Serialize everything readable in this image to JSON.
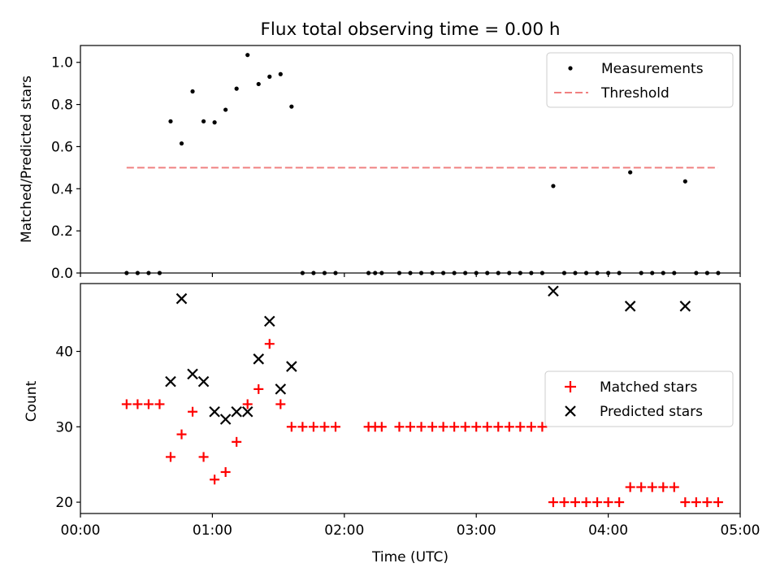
{
  "chart_data": [
    {
      "type": "scatter",
      "title": "Flux total observing time = 0.00 h",
      "xlabel": "",
      "ylabel": "Matched/Predicted stars",
      "xlim": [
        "00:00",
        "05:00"
      ],
      "ylim": [
        0,
        1.08
      ],
      "yticks": [
        0.0,
        0.2,
        0.4,
        0.6,
        0.8,
        1.0
      ],
      "ytick_labels": [
        "0.0",
        "0.2",
        "0.4",
        "0.6",
        "0.8",
        "1.0"
      ],
      "legend_position": "upper-right",
      "series": [
        {
          "name": "Measurements",
          "color": "#000000",
          "marker": "dot",
          "points": [
            [
              "00:21",
              0.0
            ],
            [
              "00:26",
              0.0
            ],
            [
              "00:31",
              0.0
            ],
            [
              "00:36",
              0.0
            ],
            [
              "00:41",
              0.72
            ],
            [
              "00:46",
              0.615
            ],
            [
              "00:51",
              0.862
            ],
            [
              "00:56",
              0.72
            ],
            [
              "01:01",
              0.715
            ],
            [
              "01:06",
              0.775
            ],
            [
              "01:11",
              0.875
            ],
            [
              "01:16",
              1.035
            ],
            [
              "01:21",
              0.897
            ],
            [
              "01:26",
              0.932
            ],
            [
              "01:31",
              0.944
            ],
            [
              "01:36",
              0.79
            ],
            [
              "01:41",
              0.0
            ],
            [
              "01:46",
              0.0
            ],
            [
              "01:51",
              0.0
            ],
            [
              "01:56",
              0.0
            ],
            [
              "02:11",
              0.0
            ],
            [
              "02:14",
              0.0
            ],
            [
              "02:17",
              0.0
            ],
            [
              "02:25",
              0.0
            ],
            [
              "02:30",
              0.0
            ],
            [
              "02:35",
              0.0
            ],
            [
              "02:40",
              0.0
            ],
            [
              "02:45",
              0.0
            ],
            [
              "02:50",
              0.0
            ],
            [
              "02:55",
              0.0
            ],
            [
              "03:00",
              0.0
            ],
            [
              "03:05",
              0.0
            ],
            [
              "03:10",
              0.0
            ],
            [
              "03:15",
              0.0
            ],
            [
              "03:20",
              0.0
            ],
            [
              "03:25",
              0.0
            ],
            [
              "03:30",
              0.0
            ],
            [
              "03:35",
              0.413
            ],
            [
              "03:40",
              0.0
            ],
            [
              "03:45",
              0.0
            ],
            [
              "03:50",
              0.0
            ],
            [
              "03:55",
              0.0
            ],
            [
              "04:00",
              0.0
            ],
            [
              "04:05",
              0.0
            ],
            [
              "04:10",
              0.478
            ],
            [
              "04:15",
              0.0
            ],
            [
              "04:20",
              0.0
            ],
            [
              "04:25",
              0.0
            ],
            [
              "04:30",
              0.0
            ],
            [
              "04:35",
              0.435
            ],
            [
              "04:40",
              0.0
            ],
            [
              "04:45",
              0.0
            ],
            [
              "04:50",
              0.0
            ]
          ]
        },
        {
          "name": "Threshold",
          "color": "#f08080",
          "marker": "dashed-line",
          "points": [
            [
              "00:21",
              0.5
            ],
            [
              "04:50",
              0.5
            ]
          ]
        }
      ]
    },
    {
      "type": "scatter",
      "title": "",
      "xlabel": "Time (UTC)",
      "ylabel": "Count",
      "xlim": [
        "00:00",
        "05:00"
      ],
      "ylim": [
        18.5,
        49
      ],
      "xticks": [
        "00:00",
        "01:00",
        "02:00",
        "03:00",
        "04:00",
        "05:00"
      ],
      "yticks": [
        20,
        30,
        40
      ],
      "ytick_labels": [
        "20",
        "30",
        "40"
      ],
      "legend_position": "center-right",
      "series": [
        {
          "name": "Matched stars",
          "color": "#ff0000",
          "marker": "plus",
          "points": [
            [
              "00:21",
              33
            ],
            [
              "00:26",
              33
            ],
            [
              "00:31",
              33
            ],
            [
              "00:36",
              33
            ],
            [
              "00:41",
              26
            ],
            [
              "00:46",
              29
            ],
            [
              "00:51",
              32
            ],
            [
              "00:56",
              26
            ],
            [
              "01:01",
              23
            ],
            [
              "01:06",
              24
            ],
            [
              "01:11",
              28
            ],
            [
              "01:16",
              33
            ],
            [
              "01:21",
              35
            ],
            [
              "01:26",
              41
            ],
            [
              "01:31",
              33
            ],
            [
              "01:36",
              30
            ],
            [
              "01:41",
              30
            ],
            [
              "01:46",
              30
            ],
            [
              "01:51",
              30
            ],
            [
              "01:56",
              30
            ],
            [
              "02:11",
              30
            ],
            [
              "02:14",
              30
            ],
            [
              "02:17",
              30
            ],
            [
              "02:25",
              30
            ],
            [
              "02:30",
              30
            ],
            [
              "02:35",
              30
            ],
            [
              "02:40",
              30
            ],
            [
              "02:45",
              30
            ],
            [
              "02:50",
              30
            ],
            [
              "02:55",
              30
            ],
            [
              "03:00",
              30
            ],
            [
              "03:05",
              30
            ],
            [
              "03:10",
              30
            ],
            [
              "03:15",
              30
            ],
            [
              "03:20",
              30
            ],
            [
              "03:25",
              30
            ],
            [
              "03:30",
              30
            ],
            [
              "03:35",
              20
            ],
            [
              "03:40",
              20
            ],
            [
              "03:45",
              20
            ],
            [
              "03:50",
              20
            ],
            [
              "03:55",
              20
            ],
            [
              "04:00",
              20
            ],
            [
              "04:05",
              20
            ],
            [
              "04:10",
              22
            ],
            [
              "04:15",
              22
            ],
            [
              "04:20",
              22
            ],
            [
              "04:25",
              22
            ],
            [
              "04:30",
              22
            ],
            [
              "04:35",
              20
            ],
            [
              "04:40",
              20
            ],
            [
              "04:45",
              20
            ],
            [
              "04:50",
              20
            ]
          ]
        },
        {
          "name": "Predicted stars",
          "color": "#000000",
          "marker": "x",
          "points": [
            [
              "00:41",
              36
            ],
            [
              "00:46",
              47
            ],
            [
              "00:51",
              37
            ],
            [
              "00:56",
              36
            ],
            [
              "01:01",
              32
            ],
            [
              "01:06",
              31
            ],
            [
              "01:11",
              32
            ],
            [
              "01:16",
              32
            ],
            [
              "01:21",
              39
            ],
            [
              "01:26",
              44
            ],
            [
              "01:31",
              35
            ],
            [
              "01:36",
              38
            ],
            [
              "03:35",
              48
            ],
            [
              "04:10",
              46
            ],
            [
              "04:35",
              46
            ]
          ]
        }
      ]
    }
  ]
}
